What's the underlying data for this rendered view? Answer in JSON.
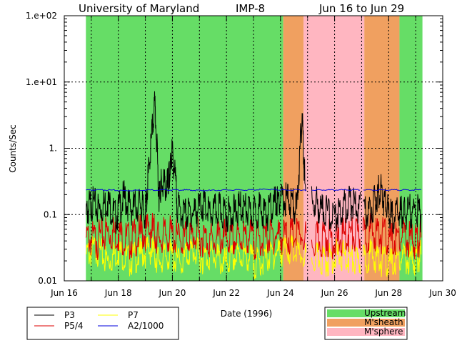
{
  "chart_data": {
    "type": "line",
    "title": {
      "institution": "University of Maryland",
      "spacecraft": "IMP-8",
      "range": "Jun 16 to Jun 29"
    },
    "xlabel": "Date (1996)",
    "ylabel": "Counts/Sec",
    "xlim": [
      16,
      30
    ],
    "ylim": [
      0.01,
      100
    ],
    "yscale": "log",
    "grid": true,
    "x_ticks": [
      {
        "value": 16,
        "label": "Jun 16"
      },
      {
        "value": 18,
        "label": "Jun 18"
      },
      {
        "value": 20,
        "label": "Jun 20"
      },
      {
        "value": 22,
        "label": "Jun 22"
      },
      {
        "value": 24,
        "label": "Jun 24"
      },
      {
        "value": 26,
        "label": "Jun 26"
      },
      {
        "value": 28,
        "label": "Jun 28"
      },
      {
        "value": 30,
        "label": "Jun 30"
      }
    ],
    "y_ticks": [
      {
        "value": 100,
        "label": "1.e+02"
      },
      {
        "value": 10,
        "label": "1.e+01"
      },
      {
        "value": 1,
        "label": "1."
      },
      {
        "value": 0.1,
        "label": "0.1"
      },
      {
        "value": 0.01,
        "label": "0.01"
      }
    ],
    "regions": [
      {
        "name": "Upstream",
        "start": 16.8,
        "end": 24.1,
        "color": "#66dd66"
      },
      {
        "name": "M'sheath",
        "start": 24.1,
        "end": 24.85,
        "color": "#f0a060"
      },
      {
        "name": "M'sphere",
        "start": 24.85,
        "end": 27.1,
        "color": "#ffb6c1"
      },
      {
        "name": "M'sheath",
        "start": 27.1,
        "end": 28.4,
        "color": "#f0a060"
      },
      {
        "name": "Upstream",
        "start": 28.4,
        "end": 29.25,
        "color": "#66dd66"
      }
    ],
    "region_legend": [
      {
        "name": "Upstream",
        "color": "#66dd66"
      },
      {
        "name": "M'sheath",
        "color": "#f0a060"
      },
      {
        "name": "M'sphere",
        "color": "#ffb6c1"
      }
    ],
    "data_gaps": [
      [
        24.95,
        25.15
      ],
      [
        26.95,
        27.05
      ]
    ],
    "series": [
      {
        "name": "P3",
        "color": "#000000",
        "x": [
          16.8,
          17.0,
          17.3,
          17.6,
          17.9,
          18.2,
          18.5,
          18.8,
          19.0,
          19.15,
          19.35,
          19.5,
          19.6,
          19.8,
          19.9,
          20.0,
          20.2,
          20.5,
          20.8,
          21.1,
          21.4,
          21.7,
          22.0,
          22.3,
          22.6,
          22.9,
          23.2,
          23.5,
          23.8,
          24.0,
          24.3,
          24.6,
          24.8,
          24.9,
          25.3,
          25.6,
          26.0,
          26.3,
          26.6,
          26.9,
          27.2,
          27.5,
          27.7,
          27.9,
          28.1,
          28.4,
          28.6,
          28.9,
          29.2
        ],
        "values": [
          0.1,
          0.15,
          0.12,
          0.16,
          0.09,
          0.18,
          0.12,
          0.15,
          0.1,
          0.6,
          5.2,
          0.2,
          0.3,
          0.25,
          0.4,
          1.0,
          0.12,
          0.1,
          0.11,
          0.14,
          0.1,
          0.12,
          0.1,
          0.11,
          0.13,
          0.1,
          0.12,
          0.1,
          0.15,
          0.16,
          0.17,
          0.12,
          3.4,
          0.3,
          0.15,
          0.11,
          0.1,
          0.13,
          0.15,
          0.12,
          0.1,
          0.16,
          0.26,
          0.13,
          0.09,
          0.11,
          0.1,
          0.12,
          0.1
        ]
      },
      {
        "name": "P5/4",
        "color": "#dd0000",
        "x": [
          16.8,
          17.2,
          17.6,
          18.0,
          18.4,
          18.8,
          19.2,
          19.5,
          19.9,
          20.3,
          20.7,
          21.1,
          21.5,
          21.9,
          22.3,
          22.7,
          23.1,
          23.5,
          23.9,
          24.3,
          24.7,
          25.3,
          25.7,
          26.1,
          26.5,
          26.9,
          27.3,
          27.7,
          28.1,
          28.5,
          28.9,
          29.2
        ],
        "values": [
          0.045,
          0.04,
          0.055,
          0.05,
          0.04,
          0.05,
          0.06,
          0.045,
          0.05,
          0.04,
          0.05,
          0.045,
          0.04,
          0.045,
          0.04,
          0.05,
          0.04,
          0.045,
          0.05,
          0.045,
          0.05,
          0.04,
          0.045,
          0.04,
          0.05,
          0.045,
          0.055,
          0.05,
          0.04,
          0.045,
          0.04,
          0.045
        ]
      },
      {
        "name": "P7",
        "color": "#ffff00",
        "x": [
          16.8,
          17.2,
          17.6,
          18.0,
          18.4,
          18.8,
          19.2,
          19.5,
          19.9,
          20.3,
          20.7,
          21.1,
          21.5,
          21.9,
          22.3,
          22.7,
          23.1,
          23.5,
          23.9,
          24.3,
          24.7,
          25.3,
          25.7,
          26.1,
          26.5,
          26.9,
          27.3,
          27.7,
          28.1,
          28.5,
          28.9,
          29.2
        ],
        "values": [
          0.025,
          0.03,
          0.02,
          0.028,
          0.02,
          0.025,
          0.03,
          0.02,
          0.025,
          0.018,
          0.03,
          0.022,
          0.025,
          0.018,
          0.022,
          0.025,
          0.018,
          0.022,
          0.028,
          0.03,
          0.025,
          0.022,
          0.02,
          0.025,
          0.022,
          0.018,
          0.025,
          0.02,
          0.018,
          0.022,
          0.02,
          0.025
        ]
      },
      {
        "name": "A2/1000",
        "color": "#0000dd",
        "x": [
          16.8,
          17.5,
          18.2,
          19.0,
          19.8,
          20.5,
          21.2,
          22.0,
          22.8,
          23.5,
          24.1,
          24.9,
          25.5,
          26.2,
          27.0,
          27.8,
          28.5,
          29.2
        ],
        "values": [
          0.235,
          0.235,
          0.23,
          0.235,
          0.235,
          0.235,
          0.23,
          0.235,
          0.235,
          0.24,
          0.235,
          0.235,
          0.235,
          0.235,
          0.235,
          0.235,
          0.235,
          0.235
        ]
      }
    ],
    "series_legend": [
      {
        "name": "P3",
        "color": "#000000"
      },
      {
        "name": "P7",
        "color": "#ffff00"
      },
      {
        "name": "P5/4",
        "color": "#dd0000"
      },
      {
        "name": "A2/1000",
        "color": "#0000dd"
      }
    ]
  }
}
